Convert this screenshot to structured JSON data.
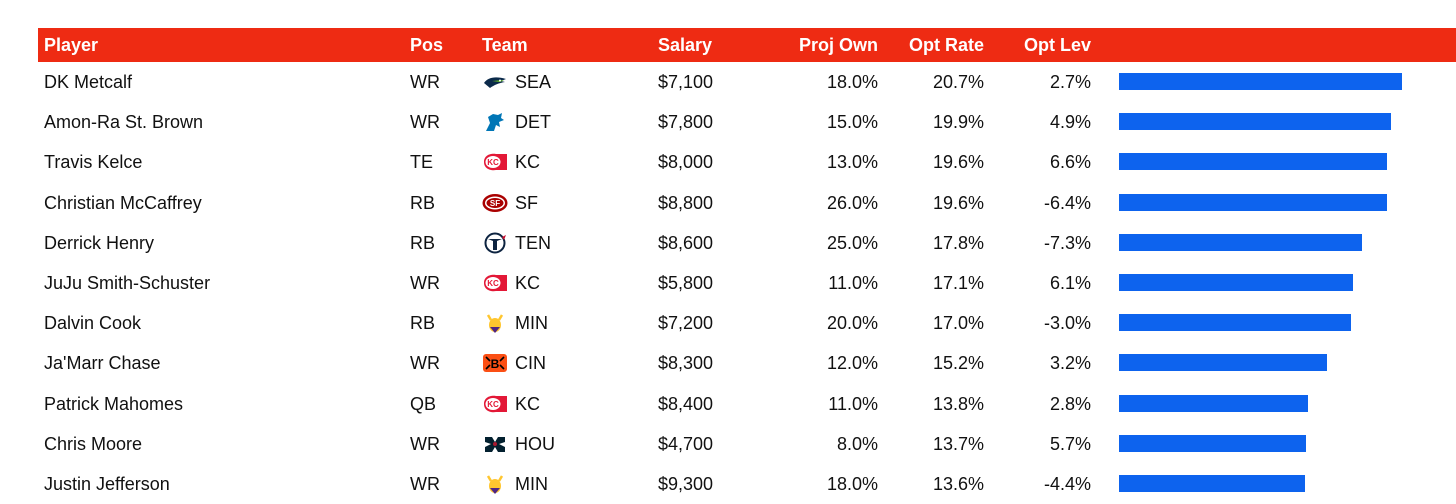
{
  "colors": {
    "header_bg": "#ee2b13",
    "header_text": "#ffffff",
    "bar": "#0d63ee"
  },
  "table": {
    "headers": {
      "player": "Player",
      "pos": "Pos",
      "team": "Team",
      "salary": "Salary",
      "proj_own": "Proj Own",
      "opt_rate": "Opt Rate",
      "opt_lev": "Opt Lev"
    },
    "bar_scale_max": 20.7,
    "rows": [
      {
        "player": "DK Metcalf",
        "pos": "WR",
        "team": "SEA",
        "logo": "seahawks-logo-icon",
        "salary": "$7,100",
        "proj_own": "18.0%",
        "opt_rate": "20.7%",
        "opt_lev": "2.7%",
        "bar_value": 20.7
      },
      {
        "player": "Amon-Ra St. Brown",
        "pos": "WR",
        "team": "DET",
        "logo": "lions-logo-icon",
        "salary": "$7,800",
        "proj_own": "15.0%",
        "opt_rate": "19.9%",
        "opt_lev": "4.9%",
        "bar_value": 19.9
      },
      {
        "player": "Travis Kelce",
        "pos": "TE",
        "team": "KC",
        "logo": "chiefs-logo-icon",
        "salary": "$8,000",
        "proj_own": "13.0%",
        "opt_rate": "19.6%",
        "opt_lev": "6.6%",
        "bar_value": 19.6
      },
      {
        "player": "Christian McCaffrey",
        "pos": "RB",
        "team": "SF",
        "logo": "49ers-logo-icon",
        "salary": "$8,800",
        "proj_own": "26.0%",
        "opt_rate": "19.6%",
        "opt_lev": "-6.4%",
        "bar_value": 19.6
      },
      {
        "player": "Derrick Henry",
        "pos": "RB",
        "team": "TEN",
        "logo": "titans-logo-icon",
        "salary": "$8,600",
        "proj_own": "25.0%",
        "opt_rate": "17.8%",
        "opt_lev": "-7.3%",
        "bar_value": 17.8
      },
      {
        "player": "JuJu Smith-Schuster",
        "pos": "WR",
        "team": "KC",
        "logo": "chiefs-logo-icon",
        "salary": "$5,800",
        "proj_own": "11.0%",
        "opt_rate": "17.1%",
        "opt_lev": "6.1%",
        "bar_value": 17.1
      },
      {
        "player": "Dalvin Cook",
        "pos": "RB",
        "team": "MIN",
        "logo": "vikings-logo-icon",
        "salary": "$7,200",
        "proj_own": "20.0%",
        "opt_rate": "17.0%",
        "opt_lev": "-3.0%",
        "bar_value": 17.0
      },
      {
        "player": "Ja'Marr Chase",
        "pos": "WR",
        "team": "CIN",
        "logo": "bengals-logo-icon",
        "salary": "$8,300",
        "proj_own": "12.0%",
        "opt_rate": "15.2%",
        "opt_lev": "3.2%",
        "bar_value": 15.2
      },
      {
        "player": "Patrick Mahomes",
        "pos": "QB",
        "team": "KC",
        "logo": "chiefs-logo-icon",
        "salary": "$8,400",
        "proj_own": "11.0%",
        "opt_rate": "13.8%",
        "opt_lev": "2.8%",
        "bar_value": 13.8
      },
      {
        "player": "Chris Moore",
        "pos": "WR",
        "team": "HOU",
        "logo": "texans-logo-icon",
        "salary": "$4,700",
        "proj_own": "8.0%",
        "opt_rate": "13.7%",
        "opt_lev": "5.7%",
        "bar_value": 13.7
      },
      {
        "player": "Justin Jefferson",
        "pos": "WR",
        "team": "MIN",
        "logo": "vikings-logo-icon",
        "salary": "$9,300",
        "proj_own": "18.0%",
        "opt_rate": "13.6%",
        "opt_lev": "-4.4%",
        "bar_value": 13.6
      }
    ]
  }
}
